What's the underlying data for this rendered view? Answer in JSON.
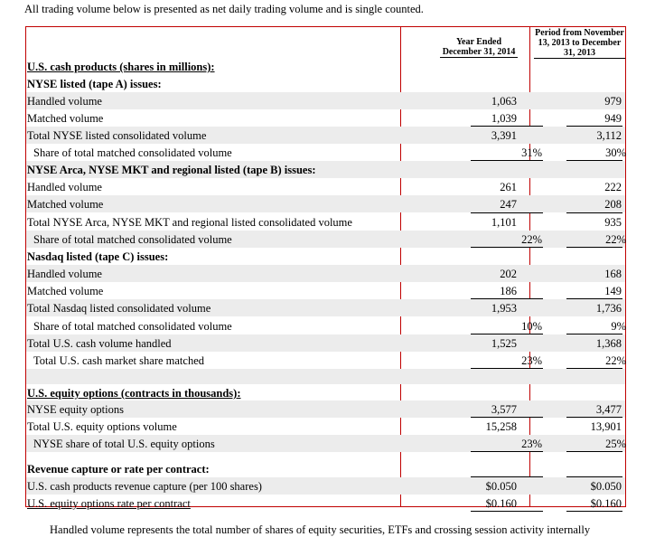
{
  "intro": "All trading volume below is presented as net daily trading volume and is single counted.",
  "headers": {
    "col1": "Year Ended December 31, 2014",
    "col2": "Period from November 13, 2013 to December 31, 2013"
  },
  "rows": [
    {
      "label": "U.S. cash products (shares in millions):",
      "style": "bold-under"
    },
    {
      "label": "NYSE listed (tape A) issues:",
      "style": "bold"
    },
    {
      "label": "Handled volume",
      "v1": "1,063",
      "v2": "979",
      "shade": true
    },
    {
      "label": "Matched volume",
      "v1": "1,039",
      "v2": "949"
    },
    {
      "label": "Total NYSE listed consolidated volume",
      "v1": "3,391",
      "v2": "3,112",
      "shade": true
    },
    {
      "label": "Share of total matched consolidated volume",
      "v1": "31%",
      "v2": "30%",
      "indent": true
    },
    {
      "label": "NYSE Arca, NYSE MKT and regional listed (tape B) issues:",
      "style": "bold",
      "shade": true
    },
    {
      "label": "Handled volume",
      "v1": "261",
      "v2": "222"
    },
    {
      "label": "Matched volume",
      "v1": "247",
      "v2": "208",
      "shade": true
    },
    {
      "label": "Total NYSE Arca, NYSE MKT and regional listed consolidated volume",
      "v1": "1,101",
      "v2": "935"
    },
    {
      "label": "Share of total matched consolidated volume",
      "v1": "22%",
      "v2": "22%",
      "indent": true,
      "shade": true
    },
    {
      "label": "Nasdaq listed (tape C) issues:",
      "style": "bold"
    },
    {
      "label": "Handled volume",
      "v1": "202",
      "v2": "168",
      "shade": true
    },
    {
      "label": "Matched volume",
      "v1": "186",
      "v2": "149"
    },
    {
      "label": "Total Nasdaq listed consolidated volume",
      "v1": "1,953",
      "v2": "1,736",
      "shade": true
    },
    {
      "label": "Share of total matched consolidated volume",
      "v1": "10%",
      "v2": "9%",
      "indent": true
    },
    {
      "label": "Total U.S. cash volume handled",
      "v1": "1,525",
      "v2": "1,368",
      "shade": true
    },
    {
      "label": "Total U.S. cash market share matched",
      "v1": "23%",
      "v2": "22%",
      "indent": true
    },
    {
      "label": "",
      "shade": true
    },
    {
      "label": "U.S. equity options (contracts in thousands):",
      "style": "bold-under"
    },
    {
      "label": "NYSE equity options",
      "v1": "3,577",
      "v2": "3,477",
      "shade": true
    },
    {
      "label": "Total U.S. equity options volume",
      "v1": "15,258",
      "v2": "13,901"
    },
    {
      "label": "NYSE share of total U.S. equity options",
      "v1": "23%",
      "v2": "25%",
      "indent": true,
      "shade": true
    },
    {
      "label": "",
      "shade": false
    },
    {
      "label": "Revenue capture or rate per contract:",
      "style": "bold"
    },
    {
      "label": "U.S. cash products revenue capture (per 100 shares)",
      "v1": "$0.050",
      "v2": "$0.050",
      "shade": true
    },
    {
      "label": "U.S. equity options rate per contract",
      "v1": "$0.160",
      "v2": "$0.160"
    }
  ],
  "footer": "Handled volume represents the total number of shares of equity securities, ETFs and crossing session activity internally"
}
